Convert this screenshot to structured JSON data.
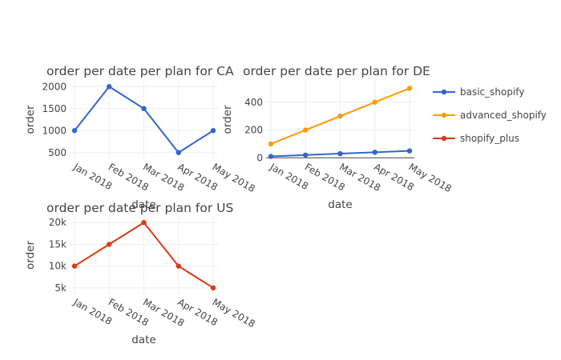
{
  "chart_data": [
    {
      "type": "line",
      "title": "order per date per plan for CA",
      "xlabel": "date",
      "ylabel": "order",
      "categories": [
        "Jan 2018",
        "Feb 2018",
        "Mar 2018",
        "Apr 2018",
        "May 2018"
      ],
      "ylim": [
        350,
        2150
      ],
      "yticks": [
        500,
        1000,
        1500,
        2000
      ],
      "ytick_labels": [
        "500",
        "1000",
        "1500",
        "2000"
      ],
      "series": [
        {
          "name": "basic_shopify",
          "color": "#3366cc",
          "values": [
            1000,
            2000,
            1500,
            500,
            1000
          ]
        }
      ]
    },
    {
      "type": "line",
      "title": "order per date per plan for DE",
      "xlabel": "date",
      "ylabel": "order",
      "categories": [
        "Jan 2018",
        "Feb 2018",
        "Mar 2018",
        "Apr 2018",
        "May 2018"
      ],
      "ylim": [
        -10,
        560
      ],
      "yticks": [
        0,
        200,
        400
      ],
      "ytick_labels": [
        "0",
        "200",
        "400"
      ],
      "series": [
        {
          "name": "basic_shopify",
          "color": "#3366cc",
          "values": [
            10,
            20,
            30,
            40,
            50
          ]
        },
        {
          "name": "advanced_shopify",
          "color": "#ff9900",
          "values": [
            100,
            200,
            300,
            400,
            500
          ]
        }
      ]
    },
    {
      "type": "line",
      "title": "order per date per plan for US",
      "xlabel": "date",
      "ylabel": "order",
      "categories": [
        "Jan 2018",
        "Feb 2018",
        "Mar 2018",
        "Apr 2018",
        "May 2018"
      ],
      "ylim": [
        3500,
        21500
      ],
      "yticks": [
        5000,
        10000,
        15000,
        20000
      ],
      "ytick_labels": [
        "5k",
        "10k",
        "15k",
        "20k"
      ],
      "series": [
        {
          "name": "shopify_plus",
          "color": "#dc3912",
          "values": [
            10000,
            15000,
            20000,
            10000,
            5000
          ]
        }
      ]
    }
  ],
  "legend": {
    "position": "right",
    "items": [
      {
        "name": "basic_shopify",
        "color": "#3366cc"
      },
      {
        "name": "advanced_shopify",
        "color": "#ff9900"
      },
      {
        "name": "shopify_plus",
        "color": "#dc3912"
      }
    ]
  }
}
